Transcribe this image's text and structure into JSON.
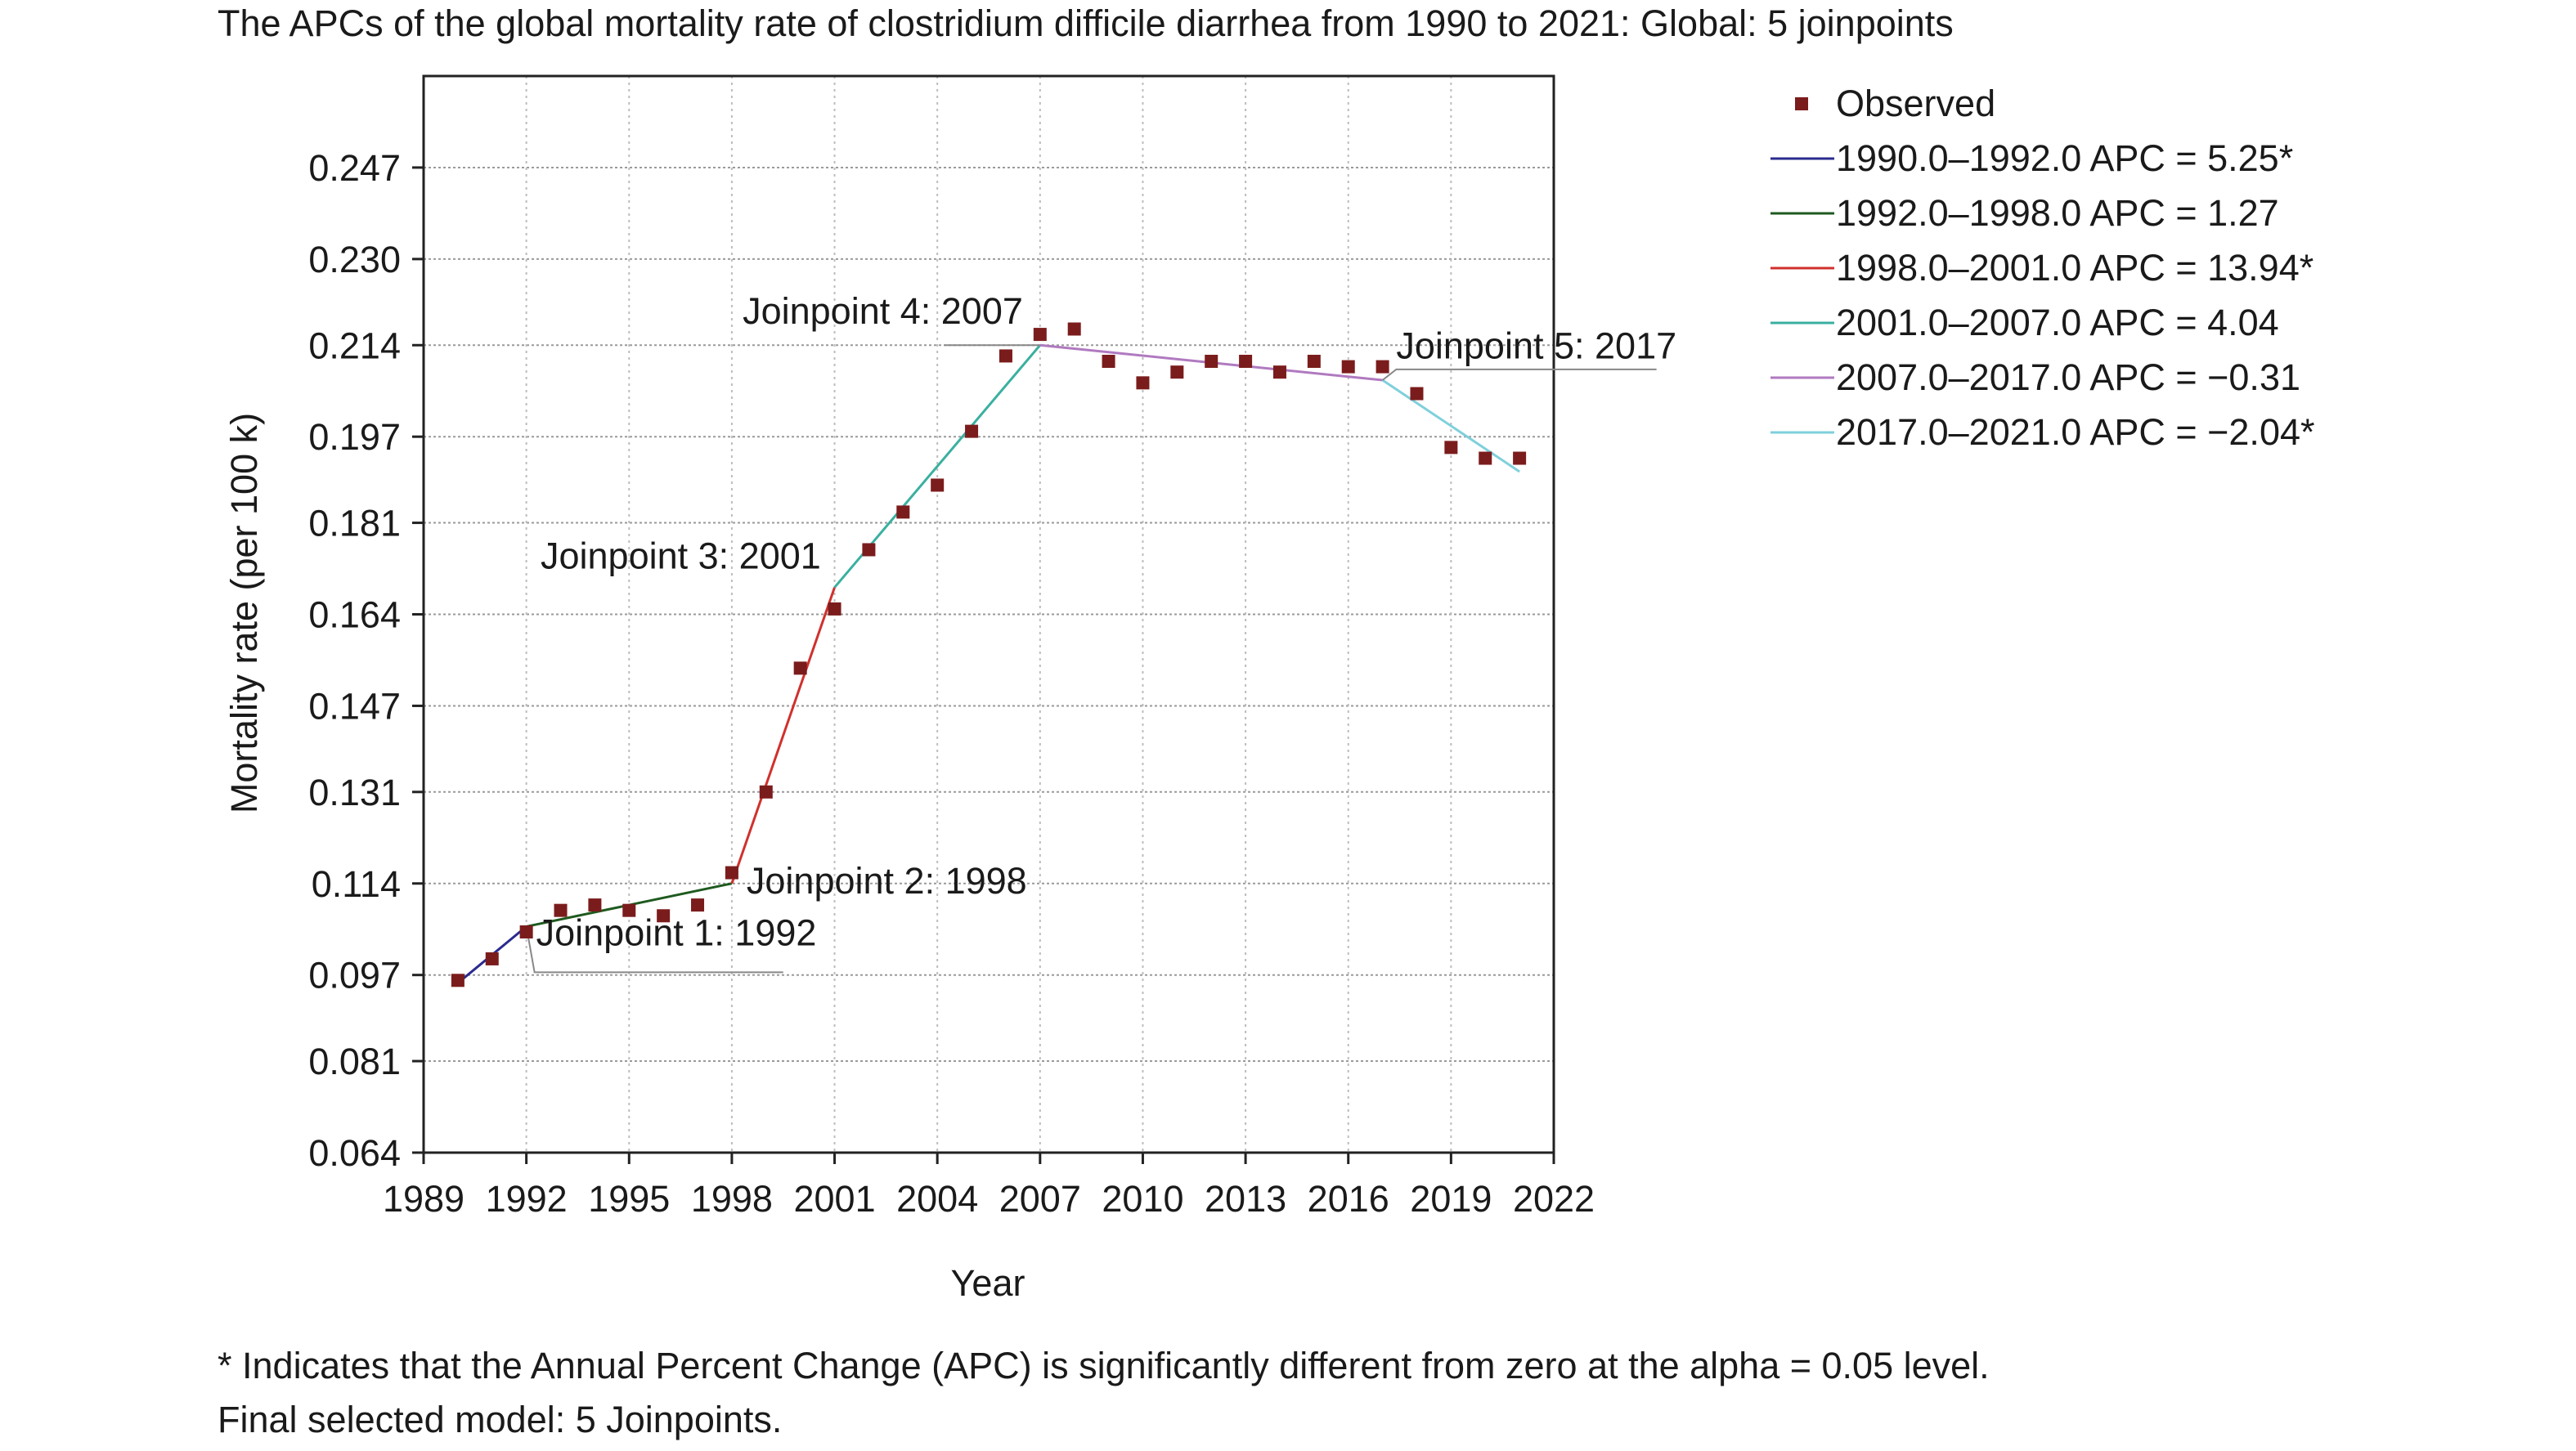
{
  "chart_data": {
    "type": "line",
    "title": "The APCs of the global mortality rate of clostridium difficile diarrhea from 1990 to 2021: Global: 5 joinpoints",
    "xlabel": "Year",
    "ylabel": "Mortality rate (per 100 k)",
    "xlim": [
      1989,
      2022
    ],
    "ylim": [
      0.064,
      0.264
    ],
    "x_ticks": [
      1989,
      1992,
      1995,
      1998,
      2001,
      2004,
      2007,
      2010,
      2013,
      2016,
      2019,
      2022
    ],
    "x_tick_labels": [
      "1989",
      "1992",
      "1995",
      "1998",
      "2001",
      "2004",
      "2007",
      "2010",
      "2013",
      "2016",
      "2019",
      "2022"
    ],
    "y_ticks": [
      0.064,
      0.081,
      0.097,
      0.114,
      0.131,
      0.147,
      0.164,
      0.181,
      0.197,
      0.214,
      0.23,
      0.247
    ],
    "y_tick_labels": [
      "0.064",
      "0.081",
      "0.097",
      "0.114",
      "0.131",
      "0.147",
      "0.164",
      "0.181",
      "0.197",
      "0.214",
      "0.230",
      "0.247"
    ],
    "grid": true,
    "legend_position": "top-right, outside plot",
    "observed": {
      "name": "Observed",
      "color": "#7b1c1c",
      "x": [
        1990,
        1991,
        1992,
        1993,
        1994,
        1995,
        1996,
        1997,
        1998,
        1999,
        2000,
        2001,
        2002,
        2003,
        2004,
        2005,
        2006,
        2007,
        2008,
        2009,
        2010,
        2011,
        2012,
        2013,
        2014,
        2015,
        2016,
        2017,
        2018,
        2019,
        2020,
        2021
      ],
      "y": [
        0.096,
        0.1,
        0.105,
        0.109,
        0.11,
        0.109,
        0.108,
        0.11,
        0.116,
        0.131,
        0.154,
        0.165,
        0.176,
        0.183,
        0.188,
        0.198,
        0.212,
        0.216,
        0.217,
        0.211,
        0.207,
        0.209,
        0.211,
        0.211,
        0.209,
        0.211,
        0.21,
        0.21,
        0.205,
        0.195,
        0.193,
        0.193
      ]
    },
    "series": [
      {
        "name": "1990.0–1992.0 APC = 5.25*",
        "color": "#2b2b8f",
        "x": [
          1990,
          1992
        ],
        "y": [
          0.0955,
          0.106
        ]
      },
      {
        "name": "1992.0–1998.0 APC = 1.27",
        "color": "#1f5a1f",
        "x": [
          1992,
          1998
        ],
        "y": [
          0.106,
          0.114
        ]
      },
      {
        "name": "1998.0–2001.0 APC = 13.94*",
        "color": "#d0312d",
        "x": [
          1998,
          2001
        ],
        "y": [
          0.114,
          0.169
        ]
      },
      {
        "name": "2001.0–2007.0 APC = 4.04",
        "color": "#3ab0a0",
        "x": [
          2001,
          2007
        ],
        "y": [
          0.169,
          0.214
        ]
      },
      {
        "name": "2007.0–2017.0 APC = −0.31",
        "color": "#b07ac0",
        "x": [
          2007,
          2017
        ],
        "y": [
          0.214,
          0.2075
        ]
      },
      {
        "name": "2017.0–2021.0 APC = −2.04*",
        "color": "#7fd0dc",
        "x": [
          2017,
          2021
        ],
        "y": [
          0.2075,
          0.1905
        ]
      }
    ],
    "annotations": [
      {
        "text": "Joinpoint 1: 1992",
        "x": 1992,
        "y": 0.106
      },
      {
        "text": "Joinpoint 2: 1998",
        "x": 1998,
        "y": 0.114
      },
      {
        "text": "Joinpoint 3: 2001",
        "x": 2001,
        "y": 0.169
      },
      {
        "text": "Joinpoint 4: 2007",
        "x": 2007,
        "y": 0.214
      },
      {
        "text": "Joinpoint 5: 2017",
        "x": 2017,
        "y": 0.2075
      }
    ]
  },
  "footnotes": [
    "* Indicates that the Annual Percent Change (APC) is significantly different from zero at the alpha = 0.05 level.",
    "Final selected model: 5 Joinpoints."
  ]
}
